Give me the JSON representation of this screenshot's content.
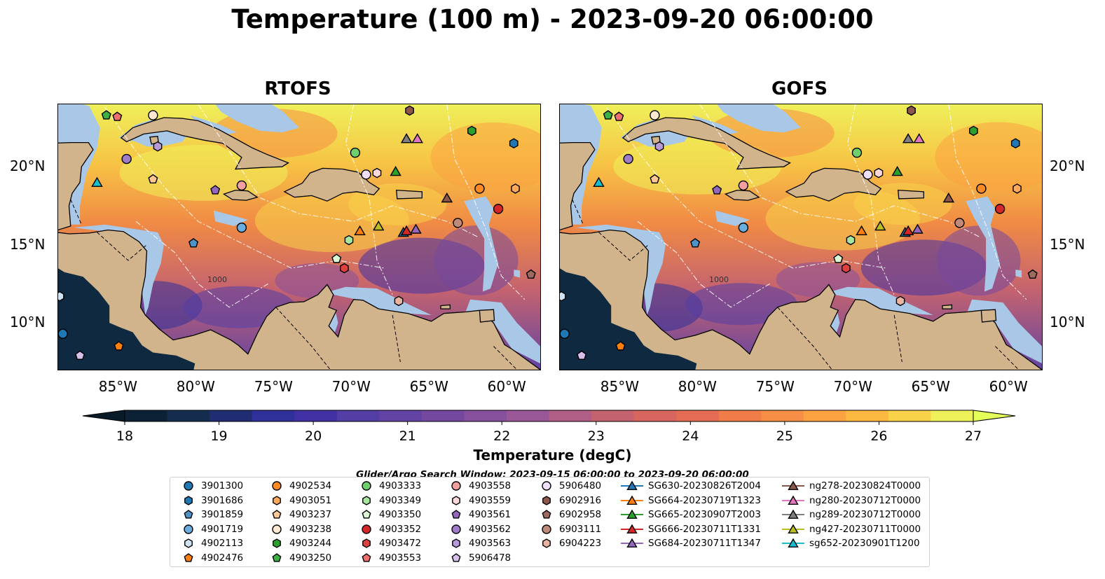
{
  "title": "Temperature (100 m) - 2023-09-20 06:00:00",
  "panels": [
    {
      "title": "RTOFS",
      "id": "rtofs"
    },
    {
      "title": "GOFS",
      "id": "gofs"
    }
  ],
  "map_extent": {
    "lon_min": -89,
    "lon_max": -58,
    "lat_min": 7,
    "lat_max": 24
  },
  "lon_ticks": [
    {
      "value": -85,
      "label": "85°W"
    },
    {
      "value": -80,
      "label": "80°W"
    },
    {
      "value": -75,
      "label": "75°W"
    },
    {
      "value": -70,
      "label": "70°W"
    },
    {
      "value": -65,
      "label": "65°W"
    },
    {
      "value": -60,
      "label": "60°W"
    }
  ],
  "lat_ticks": [
    {
      "value": 20,
      "label": "20°N"
    },
    {
      "value": 15,
      "label": "15°N"
    },
    {
      "value": 10,
      "label": "10°N"
    }
  ],
  "contour_labels": [
    "1000"
  ],
  "colorbar": {
    "title": "Temperature (degC)",
    "min": 18,
    "max": 27,
    "step": 0.5,
    "extend": "both",
    "ticks": [
      "18",
      "19",
      "20",
      "21",
      "22",
      "23",
      "24",
      "25",
      "26",
      "27"
    ],
    "colors": [
      "#0c2136",
      "#142d4e",
      "#202d73",
      "#30309a",
      "#4231a4",
      "#533ea6",
      "#6243a3",
      "#75489f",
      "#86509c",
      "#9a5797",
      "#b15e87",
      "#c4636f",
      "#d6665e",
      "#e46b54",
      "#ef7c49",
      "#f68e45",
      "#fba341",
      "#fbb941",
      "#f8d248",
      "#eef05a"
    ],
    "over_color": "#e4fe5a",
    "under_color": "#091b29"
  },
  "colors": {
    "land": "#d1b48c",
    "shelf": "#a9c7e6",
    "deep": "#0f2a40"
  },
  "search_window": "Glider/Argo Search Window: 2023-09-15 06:00:00 to 2023-09-20 06:00:00",
  "legend": {
    "columns": [
      [
        {
          "label": "3901300",
          "marker": "circle",
          "color": "#1f77b4"
        },
        {
          "label": "3901686",
          "marker": "hexagon",
          "color": "#1f77b4"
        },
        {
          "label": "3901859",
          "marker": "pentagon",
          "color": "#4e93c8"
        },
        {
          "label": "4901719",
          "marker": "circle",
          "color": "#6aaee0"
        },
        {
          "label": "4902113",
          "marker": "hexagon",
          "color": "#cfe5f7"
        },
        {
          "label": "4902476",
          "marker": "pentagon",
          "color": "#ff7f0e"
        }
      ],
      [
        {
          "label": "4902534",
          "marker": "circle",
          "color": "#ff8a24"
        },
        {
          "label": "4903051",
          "marker": "hexagon",
          "color": "#ffa95c"
        },
        {
          "label": "4903237",
          "marker": "pentagon",
          "color": "#ffc896"
        },
        {
          "label": "4903238",
          "marker": "circle",
          "color": "#ffe8d0"
        },
        {
          "label": "4903244",
          "marker": "hexagon",
          "color": "#2ca02c"
        },
        {
          "label": "4903250",
          "marker": "pentagon",
          "color": "#3cb043"
        }
      ],
      [
        {
          "label": "4903333",
          "marker": "circle",
          "color": "#6fcf6f"
        },
        {
          "label": "4903349",
          "marker": "hexagon",
          "color": "#a8e6a0"
        },
        {
          "label": "4903350",
          "marker": "pentagon",
          "color": "#dcf7d4"
        },
        {
          "label": "4903352",
          "marker": "circle",
          "color": "#d62728"
        },
        {
          "label": "4903472",
          "marker": "hexagon",
          "color": "#e04040"
        },
        {
          "label": "4903553",
          "marker": "pentagon",
          "color": "#ef6f6f"
        }
      ],
      [
        {
          "label": "4903558",
          "marker": "circle",
          "color": "#f5a0a0"
        },
        {
          "label": "4903559",
          "marker": "hexagon",
          "color": "#fcd8d8"
        },
        {
          "label": "4903561",
          "marker": "pentagon",
          "color": "#9467bd"
        },
        {
          "label": "4903562",
          "marker": "circle",
          "color": "#a07cc8"
        },
        {
          "label": "4903563",
          "marker": "hexagon",
          "color": "#b99ad8"
        },
        {
          "label": "5906478",
          "marker": "pentagon",
          "color": "#d7c0ea"
        }
      ],
      [
        {
          "label": "5906480",
          "marker": "circle",
          "color": "#efdffa"
        },
        {
          "label": "6902916",
          "marker": "hexagon",
          "color": "#8c564b"
        },
        {
          "label": "6902958",
          "marker": "pentagon",
          "color": "#9c6a5e"
        },
        {
          "label": "6903111",
          "marker": "circle",
          "color": "#c08a7b"
        },
        {
          "label": "6904223",
          "marker": "hexagon",
          "color": "#e8b4a0"
        }
      ],
      [
        {
          "label": "SG630-20230826T2004",
          "marker": "triangle",
          "color": "#1f77b4"
        },
        {
          "label": "SG664-20230719T1323",
          "marker": "triangle",
          "color": "#ff7f0e"
        },
        {
          "label": "SG665-20230907T2003",
          "marker": "triangle",
          "color": "#2ca02c"
        },
        {
          "label": "SG666-20230711T1331",
          "marker": "triangle",
          "color": "#d62728"
        },
        {
          "label": "SG684-20230711T1347",
          "marker": "triangle",
          "color": "#9467bd"
        }
      ],
      [
        {
          "label": "ng278-20230824T0000",
          "marker": "triangle",
          "color": "#8c564b"
        },
        {
          "label": "ng280-20230712T0000",
          "marker": "triangle",
          "color": "#e377c2"
        },
        {
          "label": "ng289-20230712T0000",
          "marker": "triangle",
          "color": "#7f7f7f"
        },
        {
          "label": "ng427-20230711T0000",
          "marker": "triangle",
          "color": "#bcbd22"
        },
        {
          "label": "sg652-20230901T1200",
          "marker": "triangle",
          "color": "#17becf"
        }
      ]
    ]
  },
  "platforms": [
    {
      "lon": -88.7,
      "lat": 9.3,
      "marker": "circle",
      "color": "#1f77b4"
    },
    {
      "lon": -59.7,
      "lat": 21.5,
      "marker": "hexagon",
      "color": "#1f77b4"
    },
    {
      "lon": -80.3,
      "lat": 15.1,
      "marker": "pentagon",
      "color": "#4e93c8"
    },
    {
      "lon": -77.2,
      "lat": 16.1,
      "marker": "circle",
      "color": "#6aaee0"
    },
    {
      "lon": -88.9,
      "lat": 11.7,
      "marker": "hexagon",
      "color": "#cfe5f7"
    },
    {
      "lon": -85.1,
      "lat": 8.5,
      "marker": "pentagon",
      "color": "#ff7f0e"
    },
    {
      "lon": -61.9,
      "lat": 18.6,
      "marker": "circle",
      "color": "#ff8a24"
    },
    {
      "lon": -59.6,
      "lat": 18.6,
      "marker": "hexagon",
      "color": "#ffa95c"
    },
    {
      "lon": -82.9,
      "lat": 19.2,
      "marker": "pentagon",
      "color": "#ffc896"
    },
    {
      "lon": -82.9,
      "lat": 23.3,
      "marker": "circle",
      "color": "#ffe8d0"
    },
    {
      "lon": -62.4,
      "lat": 22.3,
      "marker": "hexagon",
      "color": "#2ca02c"
    },
    {
      "lon": -85.9,
      "lat": 23.3,
      "marker": "pentagon",
      "color": "#3cb043"
    },
    {
      "lon": -69.9,
      "lat": 20.9,
      "marker": "circle",
      "color": "#6fcf6f"
    },
    {
      "lon": -70.3,
      "lat": 15.3,
      "marker": "hexagon",
      "color": "#a8e6a0"
    },
    {
      "lon": -71.1,
      "lat": 14.1,
      "marker": "pentagon",
      "color": "#dcf7d4"
    },
    {
      "lon": -60.7,
      "lat": 17.3,
      "marker": "circle",
      "color": "#d62728"
    },
    {
      "lon": -70.6,
      "lat": 13.5,
      "marker": "hexagon",
      "color": "#e04040"
    },
    {
      "lon": -85.2,
      "lat": 23.2,
      "marker": "pentagon",
      "color": "#ef6f6f"
    },
    {
      "lon": -77.2,
      "lat": 18.8,
      "marker": "circle",
      "color": "#f5a0a0"
    },
    {
      "lon": -68.5,
      "lat": 19.6,
      "marker": "hexagon",
      "color": "#fcd8d8"
    },
    {
      "lon": -78.9,
      "lat": 18.5,
      "marker": "pentagon",
      "color": "#9467bd"
    },
    {
      "lon": -84.6,
      "lat": 20.5,
      "marker": "circle",
      "color": "#a07cc8"
    },
    {
      "lon": -82.6,
      "lat": 21.3,
      "marker": "hexagon",
      "color": "#b99ad8"
    },
    {
      "lon": -87.6,
      "lat": 7.9,
      "marker": "pentagon",
      "color": "#d7c0ea"
    },
    {
      "lon": -69.2,
      "lat": 19.5,
      "marker": "circle",
      "color": "#efdffa"
    },
    {
      "lon": -66.4,
      "lat": 23.6,
      "marker": "hexagon",
      "color": "#8c564b"
    },
    {
      "lon": -58.6,
      "lat": 13.1,
      "marker": "pentagon",
      "color": "#9c6a5e"
    },
    {
      "lon": -63.3,
      "lat": 16.4,
      "marker": "circle",
      "color": "#c08a7b"
    },
    {
      "lon": -67.1,
      "lat": 11.4,
      "marker": "hexagon",
      "color": "#e8b4a0"
    },
    {
      "lon": -66.8,
      "lat": 15.8,
      "marker": "triangle",
      "color": "#1f77b4"
    },
    {
      "lon": -69.6,
      "lat": 15.9,
      "marker": "triangle",
      "color": "#ff7f0e"
    },
    {
      "lon": -67.3,
      "lat": 19.7,
      "marker": "triangle",
      "color": "#2ca02c"
    },
    {
      "lon": -66.6,
      "lat": 15.9,
      "marker": "triangle",
      "color": "#d62728"
    },
    {
      "lon": -66.0,
      "lat": 16.0,
      "marker": "triangle",
      "color": "#9467bd"
    },
    {
      "lon": -64.0,
      "lat": 18.0,
      "marker": "triangle",
      "color": "#8c564b"
    },
    {
      "lon": -65.9,
      "lat": 21.8,
      "marker": "triangle",
      "color": "#e377c2"
    },
    {
      "lon": -66.6,
      "lat": 21.8,
      "marker": "triangle",
      "color": "#7f7f7f"
    },
    {
      "lon": -68.4,
      "lat": 16.2,
      "marker": "triangle",
      "color": "#bcbd22"
    },
    {
      "lon": -86.5,
      "lat": 19.0,
      "marker": "triangle",
      "color": "#17becf"
    }
  ]
}
